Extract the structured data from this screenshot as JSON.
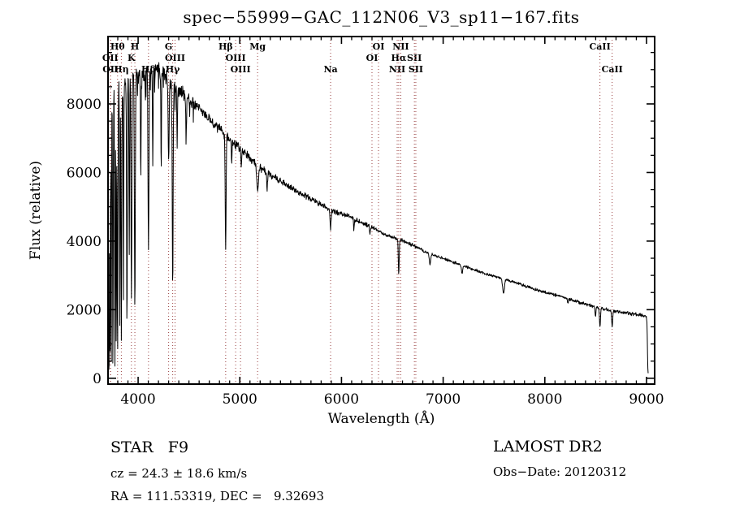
{
  "title": "spec−55999−GAC_112N06_V3_sp11−167.fits",
  "colors": {
    "background": "#ffffff",
    "spectrum": "#000000",
    "frame": "#000000",
    "line_marker": "#9a4040",
    "text": "#000000"
  },
  "info": {
    "star_class": "STAR   F9",
    "cz": "cz = 24.3 ± 18.6 km/s",
    "ra_dec": "RA = 111.53319, DEC =   9.32693",
    "survey": "LAMOST DR2",
    "obs_date": "Obs−Date: 20120312"
  },
  "chart_data": {
    "type": "line",
    "title": "spec−55999−GAC_112N06_V3_sp11−167.fits",
    "xlabel": "Wavelength (Å)",
    "ylabel": "Flux (relative)",
    "xlim": [
      3704,
      9080
    ],
    "ylim": [
      -170,
      9965
    ],
    "x_ticks": [
      4000,
      5000,
      6000,
      7000,
      8000,
      9000
    ],
    "y_ticks": [
      0,
      2000,
      4000,
      6000,
      8000
    ],
    "x_minor_step": 100,
    "y_minor_step": 500,
    "grid": false,
    "legend": "none",
    "spectral_lines": [
      {
        "label": "OII",
        "wavelength": 3726,
        "row": 2
      },
      {
        "label": "OII",
        "wavelength": 3729,
        "row": 3
      },
      {
        "label": "Hθ",
        "wavelength": 3798,
        "row": 1
      },
      {
        "label": "Hη",
        "wavelength": 3835,
        "row": 3
      },
      {
        "label": "K",
        "wavelength": 3934,
        "row": 2
      },
      {
        "label": "H",
        "wavelength": 3968,
        "row": 1
      },
      {
        "label": "Hδ",
        "wavelength": 4102,
        "row": 3
      },
      {
        "label": "G",
        "wavelength": 4300,
        "row": 1
      },
      {
        "label": "Hγ",
        "wavelength": 4340,
        "row": 3
      },
      {
        "label": "OIII",
        "wavelength": 4363,
        "row": 2
      },
      {
        "label": "Hβ",
        "wavelength": 4861,
        "row": 1
      },
      {
        "label": "OIII",
        "wavelength": 4959,
        "row": 2
      },
      {
        "label": "OIII",
        "wavelength": 5007,
        "row": 3
      },
      {
        "label": "Mg",
        "wavelength": 5175,
        "row": 1
      },
      {
        "label": "Na",
        "wavelength": 5893,
        "row": 3
      },
      {
        "label": "OI",
        "wavelength": 6300,
        "row": 2
      },
      {
        "label": "OI",
        "wavelength": 6364,
        "row": 1
      },
      {
        "label": "NII",
        "wavelength": 6548,
        "row": 3
      },
      {
        "label": "Hα",
        "wavelength": 6563,
        "row": 2
      },
      {
        "label": "NII",
        "wavelength": 6583,
        "row": 1
      },
      {
        "label": "SII",
        "wavelength": 6717,
        "row": 2
      },
      {
        "label": "SII",
        "wavelength": 6731,
        "row": 3
      },
      {
        "label": "CaII",
        "wavelength": 8542,
        "row": 1
      },
      {
        "label": "CaII",
        "wavelength": 8662,
        "row": 3
      }
    ],
    "continuum": [
      [
        3706,
        7600
      ],
      [
        3730,
        8250
      ],
      [
        3760,
        8400
      ],
      [
        3800,
        8500
      ],
      [
        3850,
        8600
      ],
      [
        3900,
        8700
      ],
      [
        3950,
        8780
      ],
      [
        4000,
        8820
      ],
      [
        4060,
        8900
      ],
      [
        4120,
        8980
      ],
      [
        4180,
        9050
      ],
      [
        4240,
        8950
      ],
      [
        4300,
        8700
      ],
      [
        4360,
        8500
      ],
      [
        4430,
        8330
      ],
      [
        4500,
        8120
      ],
      [
        4600,
        7870
      ],
      [
        4700,
        7550
      ],
      [
        4800,
        7280
      ],
      [
        4900,
        6980
      ],
      [
        5000,
        6700
      ],
      [
        5100,
        6420
      ],
      [
        5200,
        6150
      ],
      [
        5300,
        5930
      ],
      [
        5400,
        5740
      ],
      [
        5500,
        5560
      ],
      [
        5600,
        5390
      ],
      [
        5700,
        5230
      ],
      [
        5800,
        5060
      ],
      [
        5900,
        4900
      ],
      [
        6000,
        4790
      ],
      [
        6100,
        4690
      ],
      [
        6200,
        4530
      ],
      [
        6300,
        4400
      ],
      [
        6400,
        4230
      ],
      [
        6500,
        4110
      ],
      [
        6600,
        4020
      ],
      [
        6700,
        3880
      ],
      [
        6800,
        3720
      ],
      [
        6900,
        3600
      ],
      [
        7000,
        3490
      ],
      [
        7150,
        3330
      ],
      [
        7300,
        3170
      ],
      [
        7450,
        3020
      ],
      [
        7600,
        2900
      ],
      [
        7750,
        2750
      ],
      [
        7900,
        2590
      ],
      [
        8050,
        2470
      ],
      [
        8200,
        2350
      ],
      [
        8350,
        2200
      ],
      [
        8500,
        2080
      ],
      [
        8650,
        1980
      ],
      [
        8800,
        1900
      ],
      [
        8900,
        1860
      ],
      [
        8980,
        1820
      ],
      [
        9000,
        1780
      ],
      [
        9006,
        1500
      ],
      [
        9010,
        700
      ],
      [
        9014,
        180
      ],
      [
        9018,
        60
      ]
    ],
    "absorption_features_format": "[wavelength_A, min_flux, sigma_A]",
    "absorption_features": [
      [
        3707,
        300,
        2.8
      ],
      [
        3714,
        180,
        2.8
      ],
      [
        3723,
        380,
        2.8
      ],
      [
        3735,
        240,
        3
      ],
      [
        3752,
        300,
        3.2
      ],
      [
        3772,
        380,
        3.2
      ],
      [
        3785,
        600,
        2.8
      ],
      [
        3798,
        650,
        3.5
      ],
      [
        3820,
        1500,
        2.8
      ],
      [
        3835,
        900,
        3.5
      ],
      [
        3856,
        2500,
        2.8
      ],
      [
        3890,
        1300,
        3.5
      ],
      [
        3913,
        3500,
        2.8
      ],
      [
        3934,
        2300,
        4
      ],
      [
        3968,
        1900,
        4.2
      ],
      [
        4026,
        5800,
        3
      ],
      [
        4102,
        3600,
        4.2
      ],
      [
        4144,
        6400,
        3
      ],
      [
        4227,
        6300,
        3
      ],
      [
        4300,
        6300,
        5
      ],
      [
        4340,
        2600,
        4.2
      ],
      [
        4384,
        6600,
        3
      ],
      [
        4472,
        6900,
        3
      ],
      [
        4861,
        3700,
        4.2
      ],
      [
        4920,
        6200,
        3
      ],
      [
        5015,
        6100,
        3
      ],
      [
        5175,
        5450,
        8
      ],
      [
        5269,
        5500,
        4
      ],
      [
        5893,
        4380,
        5
      ],
      [
        6122,
        4300,
        3
      ],
      [
        6280,
        4200,
        3
      ],
      [
        6563,
        3050,
        4.2
      ],
      [
        6870,
        3320,
        7
      ],
      [
        7186,
        3060,
        6
      ],
      [
        7594,
        2480,
        9
      ],
      [
        8227,
        2200,
        4
      ],
      [
        8498,
        1780,
        4
      ],
      [
        8542,
        1480,
        5
      ],
      [
        8662,
        1500,
        5
      ]
    ],
    "noise_profile": [
      [
        3706,
        260
      ],
      [
        4000,
        285
      ],
      [
        4300,
        265
      ],
      [
        4600,
        185
      ],
      [
        5000,
        150
      ],
      [
        5500,
        110
      ],
      [
        6000,
        85
      ],
      [
        6500,
        65
      ],
      [
        7000,
        55
      ],
      [
        7600,
        48
      ],
      [
        8200,
        52
      ],
      [
        8800,
        58
      ],
      [
        9018,
        55
      ]
    ],
    "noise_seed": 11,
    "sample_step": 3
  }
}
